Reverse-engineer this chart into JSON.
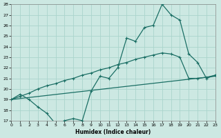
{
  "xlabel": "Humidex (Indice chaleur)",
  "xlim": [
    0,
    23
  ],
  "ylim": [
    17,
    28
  ],
  "xticks": [
    0,
    1,
    2,
    3,
    4,
    5,
    6,
    7,
    8,
    9,
    10,
    11,
    12,
    13,
    14,
    15,
    16,
    17,
    18,
    19,
    20,
    21,
    22,
    23
  ],
  "yticks": [
    17,
    18,
    19,
    20,
    21,
    22,
    23,
    24,
    25,
    26,
    27,
    28
  ],
  "bg_color": "#cce8e2",
  "line_color": "#1a6e64",
  "grid_color": "#aad4cc",
  "line1_x": [
    0,
    1,
    2,
    3,
    4,
    5,
    6,
    7,
    8,
    9,
    10,
    11,
    12,
    13,
    14,
    15,
    16,
    17,
    18,
    19,
    20,
    21,
    22,
    23
  ],
  "line1_y": [
    19.0,
    19.5,
    19.0,
    18.3,
    17.7,
    16.7,
    17.0,
    17.2,
    17.0,
    19.8,
    21.2,
    21.0,
    22.0,
    24.8,
    24.5,
    25.8,
    26.0,
    28.0,
    27.0,
    26.5,
    23.3,
    22.5,
    21.0,
    21.3
  ],
  "line2_x": [
    0,
    1,
    2,
    3,
    4,
    5,
    6,
    7,
    8,
    9,
    10,
    11,
    12,
    13,
    14,
    15,
    16,
    17,
    18,
    19,
    20,
    21,
    22,
    23
  ],
  "line2_y": [
    19.0,
    19.3,
    19.6,
    20.0,
    20.3,
    20.5,
    20.8,
    21.0,
    21.3,
    21.5,
    21.8,
    22.0,
    22.3,
    22.5,
    22.8,
    23.0,
    23.2,
    23.4,
    23.3,
    23.0,
    21.0,
    21.0,
    21.1,
    21.3
  ],
  "line3_x": [
    0,
    23
  ],
  "line3_y": [
    19.0,
    21.2
  ]
}
